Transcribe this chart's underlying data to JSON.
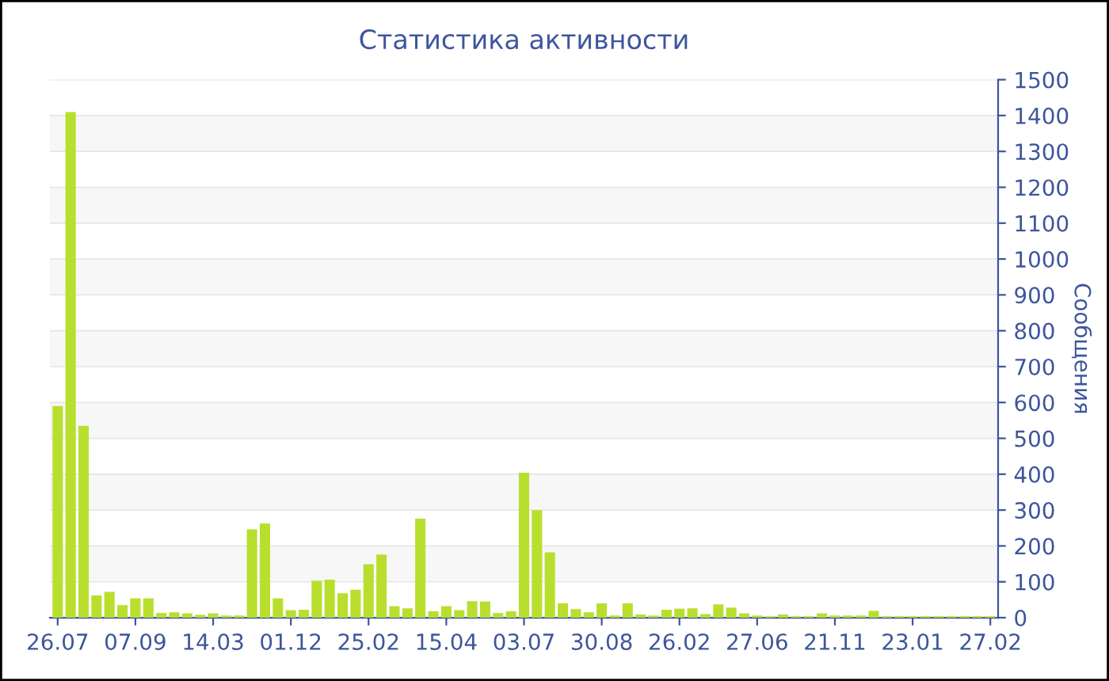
{
  "chart_data": {
    "type": "bar",
    "title": "Статистика активности",
    "ylabel": "Сообщения",
    "categories": [
      "26.07",
      null,
      null,
      null,
      null,
      null,
      "07.09",
      null,
      null,
      null,
      null,
      null,
      "14.03",
      null,
      null,
      null,
      null,
      null,
      "01.12",
      null,
      null,
      null,
      null,
      null,
      "25.02",
      null,
      null,
      null,
      null,
      null,
      "15.04",
      null,
      null,
      null,
      null,
      null,
      "03.07",
      null,
      null,
      null,
      null,
      null,
      "30.08",
      null,
      null,
      null,
      null,
      null,
      "26.02",
      null,
      null,
      null,
      null,
      null,
      "27.06",
      null,
      null,
      null,
      null,
      null,
      "21.11",
      null,
      null,
      null,
      null,
      null,
      "23.01",
      null,
      null,
      null,
      null,
      null,
      "27.02"
    ],
    "values": [
      590,
      1410,
      535,
      62,
      72,
      35,
      54,
      54,
      13,
      15,
      12,
      8,
      12,
      6,
      6,
      246,
      263,
      54,
      21,
      22,
      103,
      106,
      68,
      78,
      149,
      176,
      32,
      26,
      276,
      18,
      32,
      21,
      46,
      45,
      13,
      18,
      404,
      300,
      182,
      40,
      24,
      15,
      40,
      6,
      40,
      9,
      6,
      22,
      25,
      26,
      10,
      37,
      28,
      12,
      6,
      4,
      9,
      4,
      4,
      12,
      6,
      6,
      6,
      19,
      4,
      4,
      4,
      4,
      4,
      4,
      4,
      4,
      4
    ],
    "color": "#b8df2e",
    "ylim": [
      0,
      1500
    ],
    "yticks": [
      0,
      100,
      200,
      300,
      400,
      500,
      600,
      700,
      800,
      900,
      1000,
      1100,
      1200,
      1300,
      1400,
      1500
    ],
    "grid": "y"
  }
}
